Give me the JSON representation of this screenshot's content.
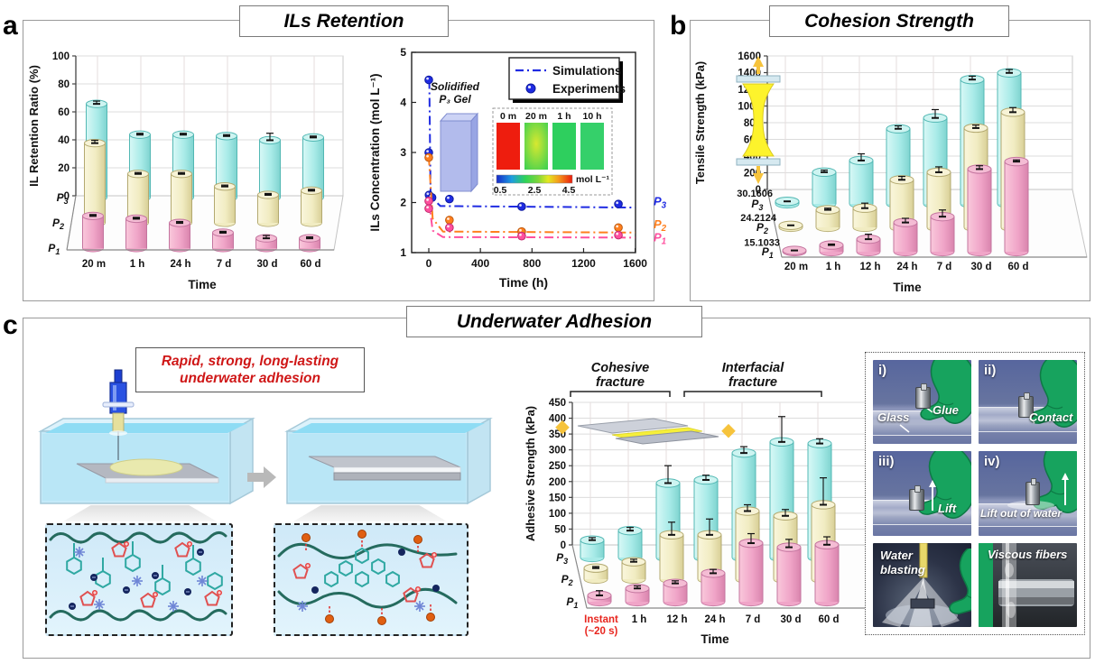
{
  "figure": {
    "panels": {
      "a": {
        "letter": "a",
        "title": "ILs Retention"
      },
      "b": {
        "letter": "b",
        "title": "Cohesion Strength"
      },
      "c": {
        "letter": "c",
        "title": "Underwater Adhesion"
      }
    },
    "panel_c": {
      "note_line1": "Rapid, strong, long-lasting",
      "note_line2": "underwater adhesion",
      "note_color": "#cf1717",
      "photos": {
        "roman": [
          "i)",
          "ii)",
          "iii)",
          "iv)"
        ],
        "captions": {
          "glass": "Glass",
          "glue": "Glue",
          "contact": "Contact",
          "lift": "Lift",
          "lift_out": "Lift out of water",
          "water_blasting_1": "Water",
          "water_blasting_2": "blasting",
          "viscous_fibers": "Viscous fibers"
        }
      }
    }
  },
  "chart_data": [
    {
      "id": "chart-a-bars",
      "type": "bar",
      "projection": "3d-cylinder",
      "ylabel": "IL Retention Ratio (%)",
      "xlabel": "Time",
      "ylim": [
        0,
        100
      ],
      "yticks": [
        0,
        20,
        40,
        60,
        80,
        100
      ],
      "categories": [
        "20 m",
        "1 h",
        "24 h",
        "7 d",
        "30 d",
        "60 d"
      ],
      "series": [
        {
          "name": "P3",
          "fill": "#a9ebe8",
          "light": "#d8f8f6",
          "dark": "#7fd4d0",
          "top": "#cdf4f1",
          "stroke": "#53b8b4",
          "values": [
            67,
            45,
            45,
            44,
            41,
            43
          ],
          "errors": [
            2,
            1,
            1,
            1,
            5,
            1
          ]
        },
        {
          "name": "P2",
          "fill": "#f1ecc2",
          "light": "#faf6dc",
          "dark": "#d8cf96",
          "top": "#f7f3d6",
          "stroke": "#b3a970",
          "values": [
            57,
            35,
            35,
            26,
            20,
            23
          ],
          "errors": [
            2,
            1,
            1,
            1,
            1,
            1
          ]
        },
        {
          "name": "P1",
          "fill": "#f0a5c8",
          "light": "#f9c8db",
          "dark": "#d984ad",
          "top": "#f4bcd4",
          "stroke": "#c4759f",
          "values": [
            23,
            21,
            18,
            11,
            7,
            7
          ],
          "errors": [
            1,
            1,
            1,
            1,
            2,
            1
          ]
        }
      ]
    },
    {
      "id": "chart-a-line",
      "type": "line",
      "ylabel": "ILs Concentration (mol L⁻¹)",
      "xlabel": "Time (h)",
      "ylim": [
        1,
        5
      ],
      "xlim": [
        0,
        1600
      ],
      "yticks": [
        1,
        2,
        3,
        4,
        5
      ],
      "xticks": [
        0,
        400,
        800,
        1200,
        1600
      ],
      "legend": {
        "sim": "Simulations",
        "exp": "Experiments",
        "color": "#1f2be2"
      },
      "series": [
        {
          "name": "P3",
          "color": "#1f2be2",
          "edge": "#0d1a9e",
          "sim": [
            [
              -8,
              4.42
            ],
            [
              4,
              4.42
            ],
            [
              14,
              2.12
            ],
            [
              90,
              1.93
            ],
            [
              1600,
              1.9
            ]
          ],
          "exp": [
            [
              0,
              4.45
            ],
            [
              0,
              3.0
            ],
            [
              2,
              2.15
            ],
            [
              25,
              2.1
            ],
            [
              160,
              2.07
            ],
            [
              720,
              1.92
            ],
            [
              1470,
              1.97
            ]
          ]
        },
        {
          "name": "P2",
          "color": "#ff7f1e",
          "edge": "#c05c10",
          "sim": [
            [
              0,
              2.92
            ],
            [
              30,
              1.68
            ],
            [
              110,
              1.42
            ],
            [
              1600,
              1.4
            ]
          ],
          "exp": [
            [
              0,
              2.9
            ],
            [
              160,
              1.65
            ],
            [
              720,
              1.42
            ],
            [
              1470,
              1.5
            ]
          ]
        },
        {
          "name": "P1",
          "color": "#ff4f9e",
          "edge": "#c22a6e",
          "sim": [
            [
              0,
              2.05
            ],
            [
              30,
              1.44
            ],
            [
              110,
              1.31
            ],
            [
              1600,
              1.3
            ]
          ],
          "exp": [
            [
              0,
              2.03
            ],
            [
              0,
              1.88
            ],
            [
              160,
              1.5
            ],
            [
              720,
              1.33
            ],
            [
              1470,
              1.35
            ]
          ]
        }
      ],
      "inset": {
        "gel_label_1": "Solidified",
        "gel_label_2": "P₃ Gel",
        "times": [
          "0 m",
          "20 m",
          "1 h",
          "10 h"
        ],
        "colorbar_ticks": [
          "0.5",
          "2.5",
          "4.5"
        ],
        "colorbar_unit": "mol L⁻¹"
      }
    },
    {
      "id": "chart-b-bars",
      "type": "bar",
      "projection": "3d-cylinder",
      "ylabel": "Tensile Strength (kPa)",
      "xlabel": "Time",
      "ylim": [
        0,
        1600
      ],
      "yticks": [
        0,
        200,
        400,
        600,
        800,
        1000,
        1200,
        1400,
        1600
      ],
      "categories": [
        "20 m",
        "1 h",
        "12 h",
        "24 h",
        "7 d",
        "30 d",
        "60 d"
      ],
      "bar_value_labels": [
        "30.1606",
        "24.2124",
        "15.1033"
      ],
      "series": [
        {
          "name": "P3",
          "fill": "#a9ebe8",
          "light": "#d8f8f6",
          "dark": "#7fd4d0",
          "top": "#cdf4f1",
          "stroke": "#53b8b4",
          "values": [
            30.1606,
            380,
            520,
            900,
            1030,
            1490,
            1570
          ],
          "errors": [
            8,
            25,
            80,
            35,
            100,
            40,
            40
          ]
        },
        {
          "name": "P2",
          "fill": "#f1ecc2",
          "light": "#faf6dc",
          "dark": "#d8cf96",
          "top": "#f7f3d6",
          "stroke": "#b3a970",
          "values": [
            24.2124,
            210,
            230,
            570,
            660,
            1190,
            1380
          ],
          "errors": [
            8,
            20,
            60,
            40,
            65,
            35,
            55
          ]
        },
        {
          "name": "P1",
          "fill": "#f0a5c8",
          "light": "#f9c8db",
          "dark": "#d984ad",
          "top": "#f4bcd4",
          "stroke": "#c4759f",
          "values": [
            15.1033,
            80,
            150,
            350,
            420,
            990,
            1080
          ],
          "errors": [
            8,
            12,
            60,
            50,
            80,
            40,
            20
          ]
        }
      ]
    },
    {
      "id": "chart-c-bars",
      "type": "bar",
      "projection": "3d-cylinder",
      "ylabel": "Adhesive Strength (kPa)",
      "xlabel": "Time",
      "ylim": [
        0,
        450
      ],
      "yticks": [
        0,
        50,
        100,
        150,
        200,
        250,
        300,
        350,
        400,
        450
      ],
      "categories": [
        "Instant",
        "1 h",
        "12 h",
        "24 h",
        "7 d",
        "30 d",
        "60 d"
      ],
      "first_category_second_line": "(~20 s)",
      "first_category_color": "#e8261f",
      "annotations": [
        {
          "lines": [
            "Cohesive",
            "fracture"
          ],
          "from": 0,
          "to": 2
        },
        {
          "lines": [
            "Interfacial",
            "fracture"
          ],
          "from": 3,
          "to": 6
        }
      ],
      "series": [
        {
          "name": "P3",
          "fill": "#a9ebe8",
          "light": "#d8f8f6",
          "dark": "#7fd4d0",
          "top": "#cdf4f1",
          "stroke": "#53b8b4",
          "values": [
            55,
            85,
            235,
            245,
            330,
            365,
            360
          ],
          "errors": [
            8,
            10,
            55,
            15,
            20,
            80,
            15
          ]
        },
        {
          "name": "P2",
          "fill": "#f1ecc2",
          "light": "#faf6dc",
          "dark": "#d8cf96",
          "top": "#f7f3d6",
          "stroke": "#b3a970",
          "values": [
            35,
            55,
            140,
            140,
            215,
            200,
            235
          ],
          "errors": [
            5,
            8,
            40,
            50,
            20,
            20,
            85
          ]
        },
        {
          "name": "P1",
          "fill": "#f0a5c8",
          "light": "#f9c8db",
          "dark": "#d984ad",
          "top": "#f4bcd4",
          "stroke": "#c4759f",
          "values": [
            20,
            42,
            58,
            90,
            185,
            172,
            180
          ],
          "errors": [
            15,
            8,
            8,
            12,
            30,
            25,
            25
          ]
        }
      ]
    }
  ]
}
